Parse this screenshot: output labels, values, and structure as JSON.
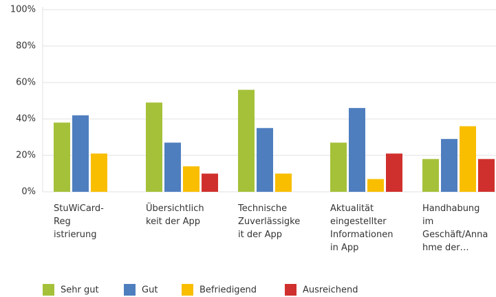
{
  "chart_data": {
    "type": "bar",
    "categories": [
      "StuWiCard-\nReg\nistrierung",
      "Übersichtlich\nkeit der App",
      "Technische\nZuverlässigke\nit der App",
      "Aktualität\neingestellter\nInformationen\nin App",
      "Handhabung\nim\nGeschäft/Anna\nhme der…"
    ],
    "series": [
      {
        "name": "Sehr gut",
        "color": "#a5c13a",
        "values": [
          38,
          49,
          56,
          27,
          18
        ]
      },
      {
        "name": "Gut",
        "color": "#4f7ebf",
        "values": [
          42,
          27,
          35,
          46,
          29
        ]
      },
      {
        "name": "Befriedigend",
        "color": "#f9be00",
        "values": [
          21,
          14,
          10,
          7,
          36
        ]
      },
      {
        "name": "Ausreichend",
        "color": "#d0302d",
        "values": [
          0,
          10,
          0,
          21,
          18
        ]
      }
    ],
    "ylim": [
      0,
      100
    ],
    "yticks": [
      {
        "value": 0,
        "label": "0%"
      },
      {
        "value": 20,
        "label": "20%"
      },
      {
        "value": 40,
        "label": "40%"
      },
      {
        "value": 60,
        "label": "60%"
      },
      {
        "value": 80,
        "label": "80%"
      },
      {
        "value": 100,
        "label": "100%"
      }
    ],
    "grid": true,
    "legend": "bottom"
  }
}
